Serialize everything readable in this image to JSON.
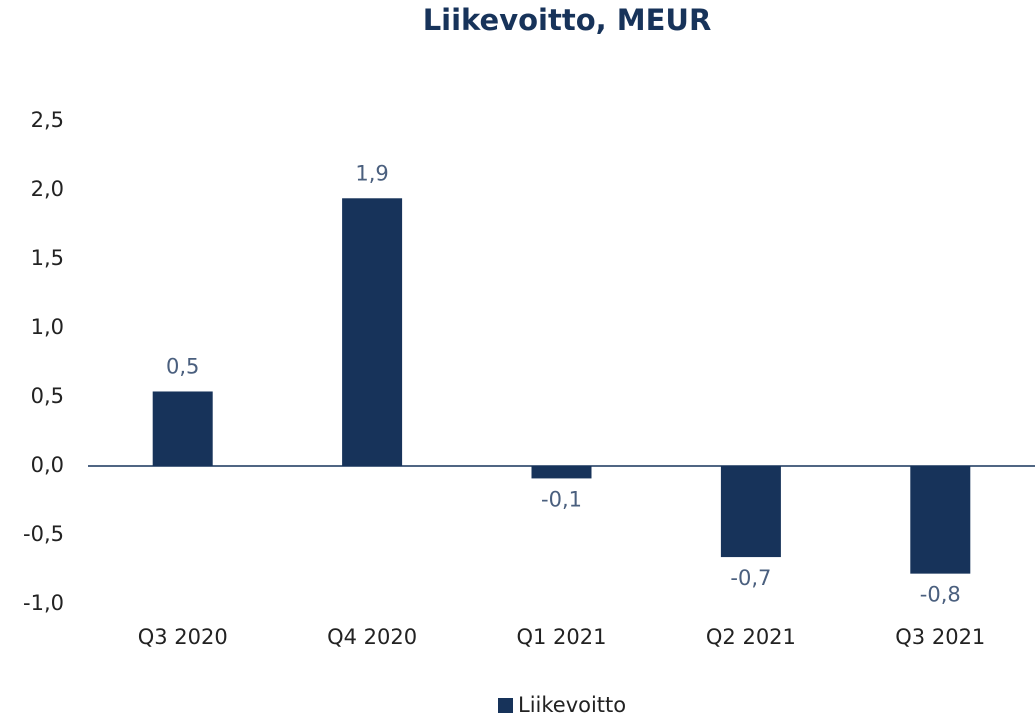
{
  "chart_data": {
    "type": "bar",
    "title": "Liikevoitto, MEUR",
    "categories": [
      "Q3 2020",
      "Q4 2020",
      "Q1 2021",
      "Q2 2021",
      "Q3 2021"
    ],
    "series": [
      {
        "name": "Liikevoitto",
        "color": "#17335a",
        "values": [
          0.54,
          1.94,
          -0.09,
          -0.66,
          -0.78
        ],
        "value_labels": [
          "0,5",
          "1,9",
          "-0,1",
          "-0,7",
          "-0,8"
        ]
      }
    ],
    "ylim": [
      -1.0,
      2.5
    ],
    "yticks": [
      {
        "value": 2.5,
        "label": "2,5"
      },
      {
        "value": 2.0,
        "label": "2,0"
      },
      {
        "value": 1.5,
        "label": "1,5"
      },
      {
        "value": 1.0,
        "label": "1,0"
      },
      {
        "value": 0.5,
        "label": "0,5"
      },
      {
        "value": 0.0,
        "label": "0,0"
      },
      {
        "value": -0.5,
        "label": "-0,5"
      },
      {
        "value": -1.0,
        "label": "-1,0"
      }
    ],
    "legend": "bottom",
    "grid": false
  }
}
